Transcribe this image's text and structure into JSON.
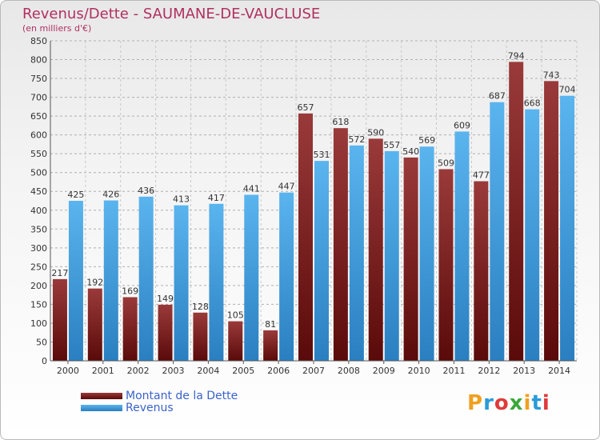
{
  "page": {
    "title": "Revenus/Dette - SAUMANE-DE-VAUCLUSE",
    "subtitle": "(en milliers d'€)",
    "logo_letters": [
      "P",
      "r",
      "o",
      "x",
      "i",
      "t",
      "i"
    ],
    "logo_colors": [
      "#f0a020",
      "#2a9bd8",
      "#e03a3a",
      "#3aa83a",
      "#f0a020",
      "#2a9bd8",
      "#e03a3a"
    ]
  },
  "chart_data": {
    "type": "bar",
    "title": "Revenus/Dette - SAUMANE-DE-VAUCLUSE",
    "subtitle": "(en milliers d'€)",
    "categories": [
      "2000",
      "2001",
      "2002",
      "2003",
      "2004",
      "2005",
      "2006",
      "2007",
      "2008",
      "2009",
      "2010",
      "2011",
      "2012",
      "2013",
      "2014"
    ],
    "series": [
      {
        "name": "Montant de la Dette",
        "color": "#7a1a1a",
        "values": [
          217,
          192,
          169,
          149,
          128,
          105,
          81,
          657,
          618,
          590,
          540,
          509,
          477,
          794,
          743
        ]
      },
      {
        "name": "Revenus",
        "color": "#4aa3e0",
        "values": [
          425,
          426,
          436,
          413,
          417,
          441,
          447,
          531,
          572,
          557,
          569,
          609,
          687,
          668,
          704
        ]
      }
    ],
    "ylim": [
      0,
      850
    ],
    "yticks": [
      0,
      50,
      100,
      150,
      200,
      250,
      300,
      350,
      400,
      450,
      500,
      550,
      600,
      650,
      700,
      750,
      800,
      850
    ],
    "grid": true,
    "legend": "bottom-left"
  }
}
